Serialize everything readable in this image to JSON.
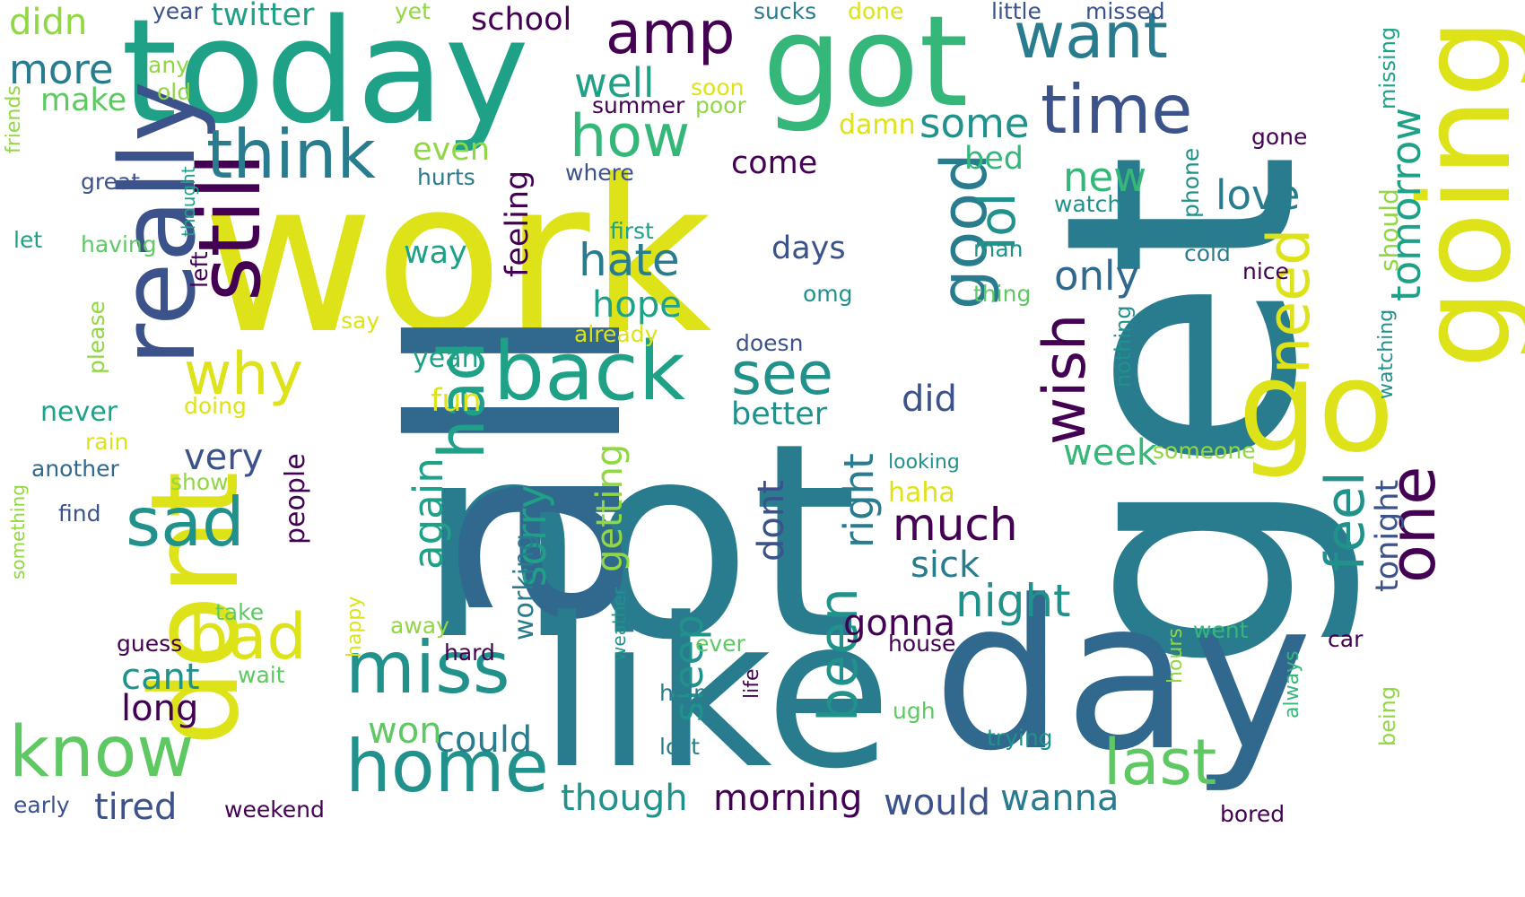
{
  "colors": {
    "background": "#ffffff",
    "dark_purple": "#440154",
    "indigo": "#3b528b",
    "blue": "#31688e",
    "teal_blue": "#287c8e",
    "teal": "#21918c",
    "green_teal": "#1fa188",
    "green": "#35b779",
    "light_green": "#5ec962",
    "lime": "#90d743",
    "yellow": "#dde318"
  },
  "words": [
    {
      "text": "not"
    },
    {
      "text": "work"
    },
    {
      "text": "get"
    },
    {
      "text": "all"
    },
    {
      "text": "like"
    },
    {
      "text": "day"
    },
    {
      "text": "today"
    },
    {
      "text": "got"
    },
    {
      "text": "going"
    },
    {
      "text": "go"
    },
    {
      "text": "dont"
    },
    {
      "text": "really"
    },
    {
      "text": "still"
    },
    {
      "text": "back"
    },
    {
      "text": "miss"
    },
    {
      "text": "home"
    },
    {
      "text": "know"
    },
    {
      "text": "think"
    },
    {
      "text": "time"
    },
    {
      "text": "want"
    },
    {
      "text": "amp"
    },
    {
      "text": "how"
    },
    {
      "text": "good"
    },
    {
      "text": "see"
    },
    {
      "text": "had"
    },
    {
      "text": "sad"
    },
    {
      "text": "why"
    },
    {
      "text": "bad"
    },
    {
      "text": "last"
    },
    {
      "text": "one"
    },
    {
      "text": "wish"
    },
    {
      "text": "need"
    },
    {
      "text": "lol"
    },
    {
      "text": "feel"
    },
    {
      "text": "been"
    },
    {
      "text": "night"
    },
    {
      "text": "much"
    },
    {
      "text": "hate"
    },
    {
      "text": "love"
    },
    {
      "text": "only"
    },
    {
      "text": "new"
    },
    {
      "text": "some"
    },
    {
      "text": "well"
    },
    {
      "text": "more"
    },
    {
      "text": "tomorrow"
    },
    {
      "text": "sorry"
    },
    {
      "text": "again"
    },
    {
      "text": "sleep"
    },
    {
      "text": "right"
    },
    {
      "text": "could"
    },
    {
      "text": "though"
    },
    {
      "text": "morning"
    },
    {
      "text": "would"
    },
    {
      "text": "wanna"
    },
    {
      "text": "tired"
    },
    {
      "text": "won"
    },
    {
      "text": "cant"
    },
    {
      "text": "long"
    },
    {
      "text": "very"
    },
    {
      "text": "hope"
    },
    {
      "text": "getting"
    },
    {
      "text": "dont"
    },
    {
      "text": "week"
    },
    {
      "text": "tonight"
    },
    {
      "text": "gonna"
    },
    {
      "text": "sick"
    },
    {
      "text": "did"
    },
    {
      "text": "better"
    },
    {
      "text": "days"
    },
    {
      "text": "come"
    },
    {
      "text": "bed"
    },
    {
      "text": "even"
    },
    {
      "text": "feeling"
    },
    {
      "text": "way"
    },
    {
      "text": "school"
    },
    {
      "text": "twitter"
    },
    {
      "text": "didn"
    },
    {
      "text": "make"
    },
    {
      "text": "never"
    },
    {
      "text": "fun"
    },
    {
      "text": "yeah"
    },
    {
      "text": "haha"
    },
    {
      "text": "people"
    },
    {
      "text": "working"
    },
    {
      "text": "phone"
    },
    {
      "text": "should"
    },
    {
      "text": "watching"
    },
    {
      "text": "being"
    },
    {
      "text": "missing"
    },
    {
      "text": "little"
    },
    {
      "text": "missed"
    },
    {
      "text": "sucks"
    },
    {
      "text": "done"
    },
    {
      "text": "year"
    },
    {
      "text": "yet"
    },
    {
      "text": "any"
    },
    {
      "text": "old"
    },
    {
      "text": "soon"
    },
    {
      "text": "summer"
    },
    {
      "text": "poor"
    },
    {
      "text": "damn"
    },
    {
      "text": "gone"
    },
    {
      "text": "hurts"
    },
    {
      "text": "where"
    },
    {
      "text": "great"
    },
    {
      "text": "friends"
    },
    {
      "text": "thought"
    },
    {
      "text": "let"
    },
    {
      "text": "having"
    },
    {
      "text": "left"
    },
    {
      "text": "first"
    },
    {
      "text": "watch"
    },
    {
      "text": "man"
    },
    {
      "text": "cold"
    },
    {
      "text": "nice"
    },
    {
      "text": "thing"
    },
    {
      "text": "omg"
    },
    {
      "text": "say"
    },
    {
      "text": "already"
    },
    {
      "text": "please"
    },
    {
      "text": "doesn"
    },
    {
      "text": "nothing"
    },
    {
      "text": "doing"
    },
    {
      "text": "rain"
    },
    {
      "text": "another"
    },
    {
      "text": "show"
    },
    {
      "text": "someone"
    },
    {
      "text": "looking"
    },
    {
      "text": "find"
    },
    {
      "text": "something"
    },
    {
      "text": "take"
    },
    {
      "text": "guess"
    },
    {
      "text": "happy"
    },
    {
      "text": "away"
    },
    {
      "text": "hard"
    },
    {
      "text": "house"
    },
    {
      "text": "went"
    },
    {
      "text": "car"
    },
    {
      "text": "wait"
    },
    {
      "text": "weather"
    },
    {
      "text": "ever"
    },
    {
      "text": "help"
    },
    {
      "text": "life"
    },
    {
      "text": "lost"
    },
    {
      "text": "ugh"
    },
    {
      "text": "hours"
    },
    {
      "text": "always"
    },
    {
      "text": "trying"
    },
    {
      "text": "early"
    },
    {
      "text": "weekend"
    },
    {
      "text": "bored"
    }
  ]
}
